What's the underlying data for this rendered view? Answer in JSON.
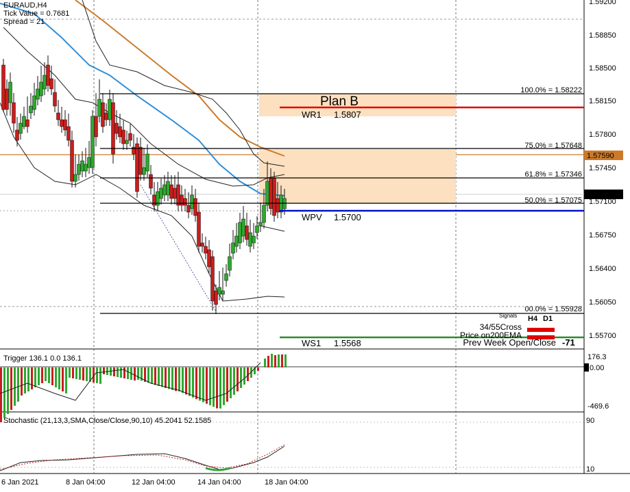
{
  "header": {
    "symbol": "EURAUD,H4",
    "tick_value": "Tick Value = 0.7681",
    "spread": "Spread = 21"
  },
  "price_axis": [
    "1.59200",
    "1.58850",
    "1.58500",
    "1.58150",
    "1.57800",
    "1.57450",
    "1.57100",
    "1.56750",
    "1.56400",
    "1.56050",
    "1.55700"
  ],
  "current_price": "1.57179",
  "orange_level": "1.57590",
  "fib": [
    {
      "label": "100.0% = 1.58222",
      "price": 1.58222
    },
    {
      "label": "75.0% = 1.57648",
      "price": 1.57648
    },
    {
      "label": "61.8% = 1.57346",
      "price": 1.57346
    },
    {
      "label": "50.0% = 1.57075",
      "price": 1.57075
    },
    {
      "label": "00.0% = 1.55928",
      "price": 1.55928
    }
  ],
  "plan_label": "Plan B",
  "pivots": {
    "wr1": {
      "name": "WR1",
      "value": "1.5807",
      "price": 1.5807,
      "color": "#e00000"
    },
    "wpv": {
      "name": "WPV",
      "value": "1.5700",
      "price": 1.57,
      "color": "#0010c8"
    },
    "ws1": {
      "name": "WS1",
      "value": "1.5568",
      "price": 1.5568,
      "color": "#2a8a2a"
    }
  },
  "signals": {
    "title": "Signals",
    "col1": "H4",
    "col2": "D1",
    "rows": [
      "34/55Cross",
      "Price on200EMA"
    ]
  },
  "prev_week": {
    "label": "Prev Week Open/Close",
    "value": "-71"
  },
  "trigger": {
    "label": "Trigger 136.1 0.0 136.1",
    "top": "176.3",
    "zero": "0.00",
    "bottom": "-469.6"
  },
  "stochastic": {
    "label": "Stochastic (21,13,3,SMA,Close/Close,90,10) 45.2041 52.1585",
    "top": "90",
    "bottom": "10"
  },
  "time_axis": [
    "6 Jan 2021",
    "8 Jan 04:00",
    "12 Jan 04:00",
    "14 Jan 04:00",
    "18 Jan 04:00"
  ],
  "colors": {
    "bull": "#2fa82f",
    "bear": "#c81e1e",
    "ema_blue": "#2f8fd8",
    "ema_orange": "#cc7a2a",
    "zone": "#fde0c0"
  }
}
